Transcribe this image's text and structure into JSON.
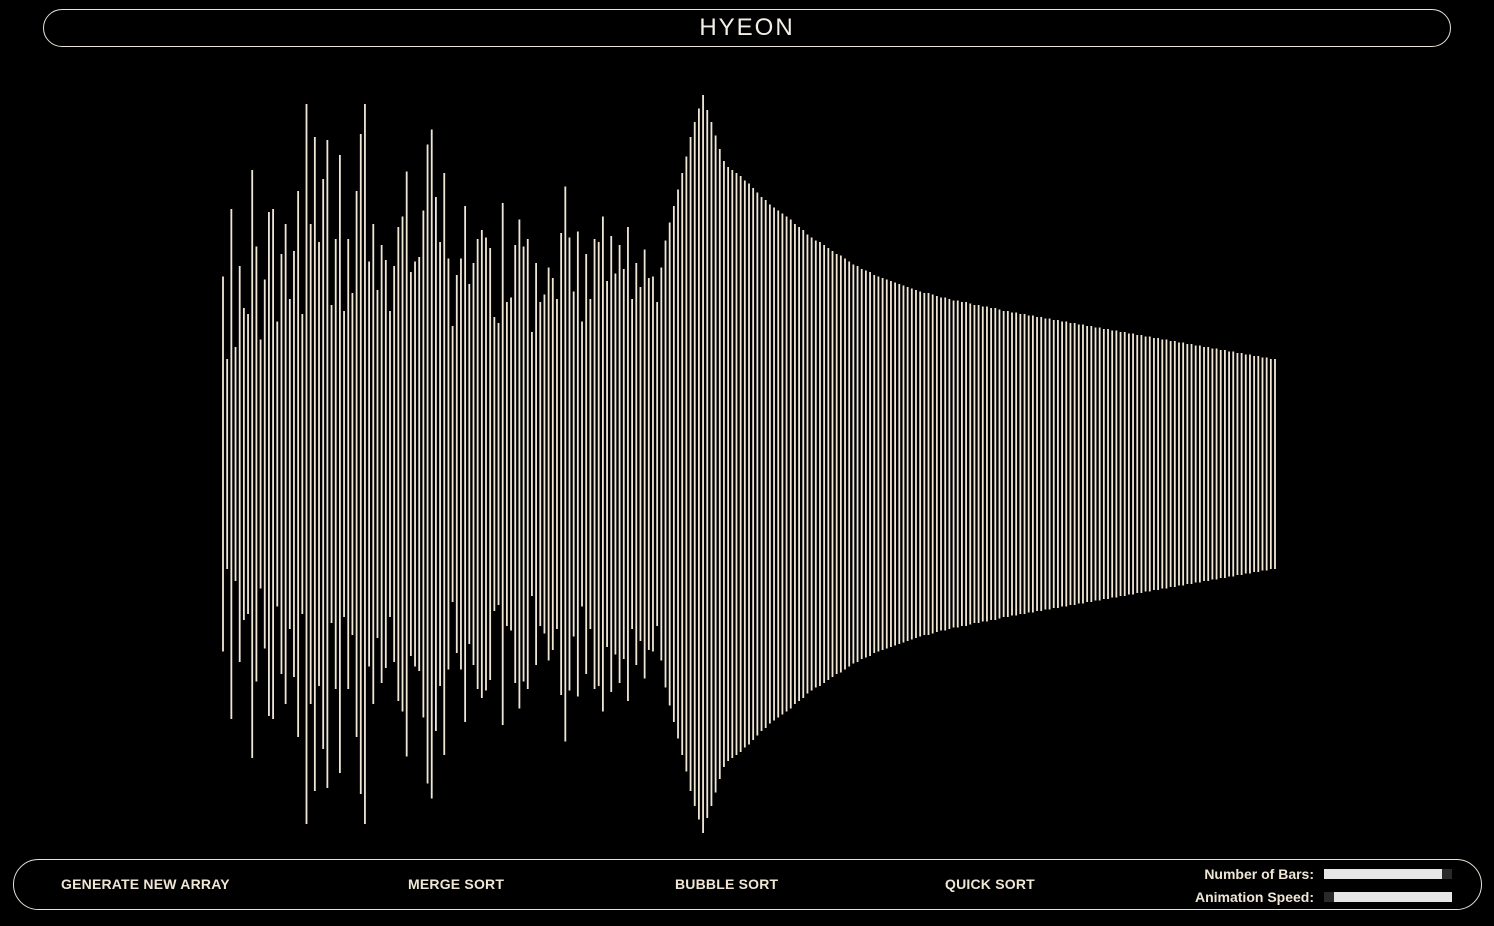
{
  "header": {
    "title": "HYEON"
  },
  "controls": {
    "generate_label": "GENERATE NEW ARRAY",
    "merge_label": "MERGE SORT",
    "bubble_label": "BUBBLE SORT",
    "quick_label": "QUICK SORT",
    "bars_label": "Number of Bars:",
    "speed_label": "Animation Speed:",
    "bars_value_fraction": 0.92,
    "speed_value_fraction": 0.08
  },
  "colors": {
    "background": "#000000",
    "bar": "#efe6d6",
    "border": "#e8e2d8"
  },
  "array": {
    "values": [
      125,
      70,
      170,
      78,
      132,
      104,
      100,
      196,
      145,
      83,
      123,
      168,
      170,
      95,
      140,
      160,
      110,
      142,
      182,
      100,
      240,
      160,
      218,
      148,
      190,
      216,
      106,
      150,
      206,
      102,
      150,
      114,
      182,
      220,
      240,
      135,
      160,
      116,
      146,
      136,
      102,
      132,
      158,
      165,
      195,
      128,
      135,
      138,
      169,
      213,
      223,
      178,
      148,
      194,
      137,
      92,
      126,
      137,
      172,
      120,
      134,
      150,
      156,
      151,
      144,
      98,
      94,
      174,
      108,
      111,
      146,
      163,
      145,
      150,
      88,
      134,
      108,
      113,
      131,
      124,
      110,
      154,
      185,
      151,
      115,
      155,
      95,
      140,
      110,
      150,
      148,
      165,
      122,
      152,
      127,
      146,
      130,
      158,
      110,
      134,
      118,
      143,
      124,
      125,
      108,
      131,
      149,
      161,
      172,
      183,
      194,
      205,
      218,
      228,
      237,
      246,
      236,
      228,
      219,
      210,
      202,
      198,
      196,
      194,
      192,
      189,
      187,
      184,
      181,
      178,
      176,
      173,
      171,
      169,
      167,
      165,
      163,
      160,
      158,
      156,
      153,
      151,
      149,
      148,
      146,
      144,
      142,
      140,
      139,
      137,
      135,
      133,
      132,
      130,
      129,
      128,
      126,
      125,
      124,
      123,
      122,
      121,
      120,
      119,
      118,
      117,
      116,
      115,
      114,
      114,
      113,
      112,
      111,
      111,
      110,
      109,
      109,
      108,
      108,
      107,
      106,
      106,
      105,
      105,
      104,
      104,
      103,
      102,
      102,
      101,
      101,
      100,
      100,
      99,
      99,
      98,
      98,
      97,
      97,
      96,
      96,
      95,
      95,
      94,
      94,
      93,
      93,
      92,
      92,
      91,
      91,
      90,
      90,
      89,
      89,
      88,
      88,
      87,
      87,
      86,
      86,
      85,
      85,
      84,
      84,
      83,
      83,
      82,
      82,
      81,
      81,
      80,
      80,
      79,
      79,
      78,
      78,
      77,
      77,
      76,
      76,
      75,
      75,
      74,
      74,
      73,
      73,
      72,
      72,
      71,
      71,
      70,
      70
    ]
  }
}
